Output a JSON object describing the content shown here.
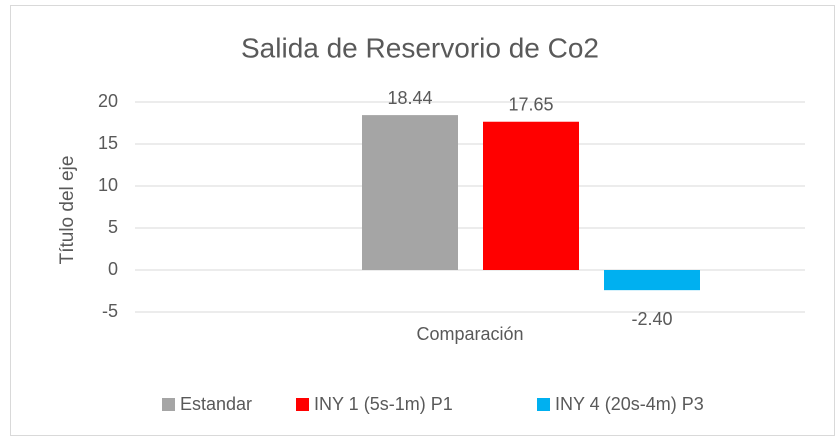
{
  "chart_data": {
    "type": "bar",
    "title": "Salida de Reservorio de Co2",
    "y_label": "Título del eje",
    "categories": [
      "Comparación"
    ],
    "series": [
      {
        "name": "Estandar",
        "color": "#a5a5a5",
        "values": [
          18.44
        ],
        "value_labels": [
          "18.44"
        ]
      },
      {
        "name": "INY 1 (5s-1m) P1",
        "color": "#ff0000",
        "values": [
          17.65
        ],
        "value_labels": [
          "17.65"
        ]
      },
      {
        "name": "INY 4 (20s-4m) P3",
        "color": "#00b0f0",
        "values": [
          -2.4
        ],
        "value_labels": [
          "-2.40"
        ]
      }
    ],
    "ylim": [
      -5,
      20
    ],
    "yticks": [
      -5,
      0,
      5,
      10,
      15,
      20
    ],
    "grid": true,
    "legend": "bottom"
  }
}
